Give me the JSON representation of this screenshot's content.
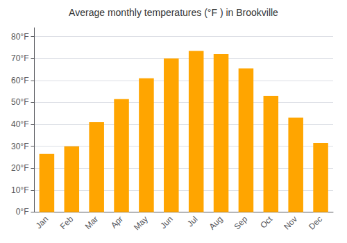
{
  "chart_data": {
    "type": "bar",
    "title": "Average monthly temperatures (°F ) in Brookville",
    "categories": [
      "Jan",
      "Feb",
      "Mar",
      "Apr",
      "May",
      "Jun",
      "Jul",
      "Aug",
      "Sep",
      "Oct",
      "Nov",
      "Dec"
    ],
    "values": [
      26.5,
      30.0,
      41.0,
      51.5,
      61.0,
      70.0,
      73.5,
      72.0,
      65.5,
      53.0,
      43.0,
      31.5
    ],
    "color": "#FFA500",
    "ylim": [
      0,
      84
    ],
    "yticks": [
      {
        "value": 0,
        "label": "0°F"
      },
      {
        "value": 10,
        "label": "10°F"
      },
      {
        "value": 20,
        "label": "20°F"
      },
      {
        "value": 30,
        "label": "30°F"
      },
      {
        "value": 40,
        "label": "40°F"
      },
      {
        "value": 50,
        "label": "50°F"
      },
      {
        "value": 60,
        "label": "60°F"
      },
      {
        "value": 70,
        "label": "70°F"
      },
      {
        "value": 80,
        "label": "80°F"
      }
    ],
    "grid": true
  }
}
